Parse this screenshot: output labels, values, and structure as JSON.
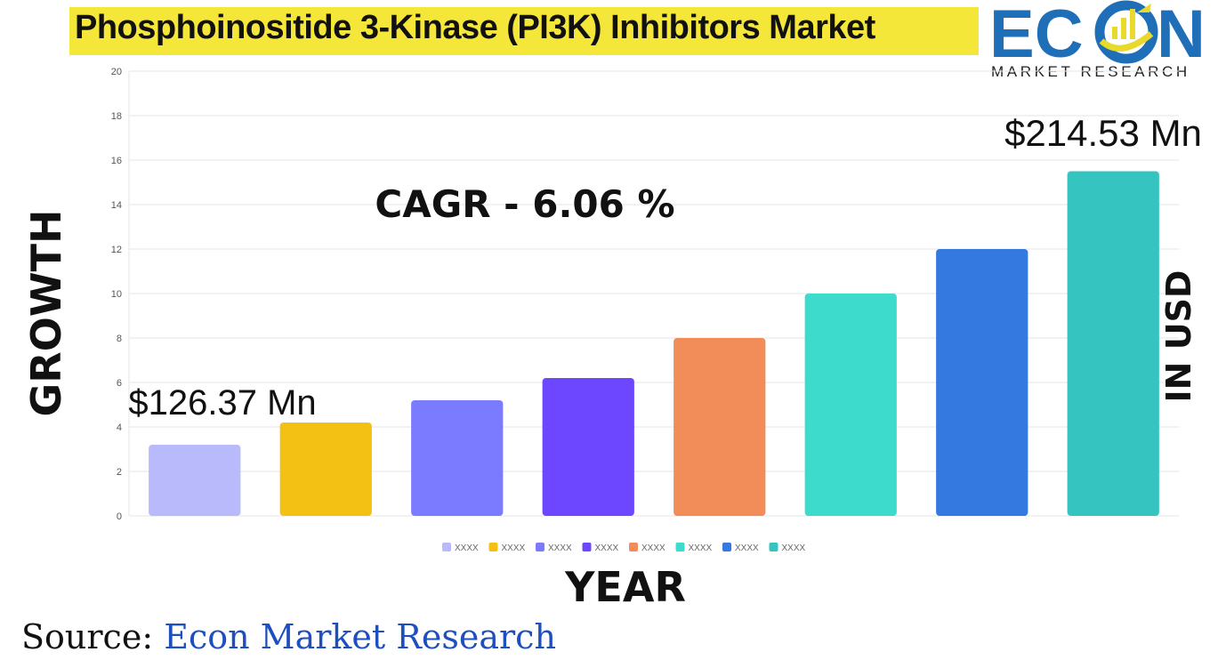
{
  "title": "Phosphoinositide 3-Kinase (PI3K) Inhibitors Market",
  "logo": {
    "word_left": "EC",
    "word_right": "N",
    "sub": "MARKET RESEARCH"
  },
  "source": {
    "prefix": "Source: ",
    "brand": "Econ Market Research"
  },
  "colors": {
    "title_bg": "#f5e63a",
    "logo_blue": "#1f6fb8",
    "source_blue": "#1e4fbf"
  },
  "chart_data": {
    "type": "bar",
    "title": "",
    "xlabel": "YEAR",
    "ylabel": "GROWTH",
    "right_label": "IN USD",
    "ylim": [
      0,
      20
    ],
    "yticks": [
      0,
      2,
      4,
      6,
      8,
      10,
      12,
      14,
      16,
      18,
      20
    ],
    "grid": true,
    "legend_position": "bottom",
    "categories": [
      "XXXX",
      "XXXX",
      "XXXX",
      "XXXX",
      "XXXX",
      "XXXX",
      "XXXX",
      "XXXX"
    ],
    "values": [
      3.2,
      4.2,
      5.2,
      6.2,
      8.0,
      10.0,
      12.0,
      15.5
    ],
    "colors": [
      "#b9bafc",
      "#f2c114",
      "#7b7bff",
      "#6c47ff",
      "#f28c58",
      "#3cdbcc",
      "#3479e0",
      "#35c4bf"
    ],
    "annotations": {
      "start_value": "$126.37 Mn",
      "end_value": "$214.53 Mn",
      "cagr": "CAGR  - 6.06 %"
    }
  }
}
